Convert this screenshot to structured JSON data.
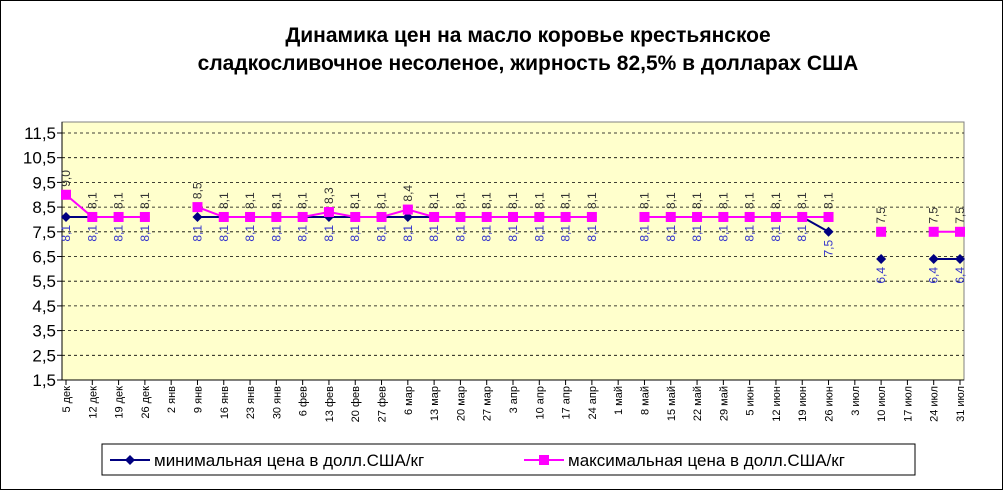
{
  "chart_data": {
    "type": "line",
    "title": [
      "Динамика цен на масло коровье крестьянское",
      "сладкосливочное несоленое, жирность 82,5%  в долларах США"
    ],
    "categories": [
      "5 дек",
      "12 дек",
      "19 дек",
      "26 дек",
      "2 янв",
      "9 янв",
      "16 янв",
      "23 янв",
      "30 янв",
      "6 фев",
      "13 фев",
      "20 фев",
      "27 фев",
      "6 мар",
      "13 мар",
      "20 мар",
      "27 мар",
      "3 апр",
      "10 апр",
      "17 апр",
      "24 апр",
      "1 май",
      "8 май",
      "15 май",
      "22 май",
      "29 май",
      "5 июн",
      "12 июн",
      "19 июн",
      "26 июн",
      "3 июл",
      "10 июл",
      "17 июл",
      "24 июл",
      "31 июл"
    ],
    "series": [
      {
        "name": "минимальная  цена  в долл.США/кг",
        "color": "#000080",
        "marker": "diamond",
        "label_color": "#3333cc",
        "label_side": "below",
        "values": [
          8.1,
          8.1,
          8.1,
          8.1,
          null,
          8.1,
          8.1,
          8.1,
          8.1,
          8.1,
          8.1,
          8.1,
          8.1,
          8.1,
          8.1,
          8.1,
          8.1,
          8.1,
          8.1,
          8.1,
          8.1,
          null,
          8.1,
          8.1,
          8.1,
          8.1,
          8.1,
          8.1,
          8.1,
          7.5,
          null,
          6.4,
          null,
          6.4,
          6.4
        ],
        "value_labels": [
          "8,1",
          "8,1",
          "8,1",
          "8,1",
          null,
          "8,1",
          "8,1",
          "8,1",
          "8,1",
          "8,1",
          "8,1",
          "8,1",
          "8,1",
          "8,1",
          "8,1",
          "8,1",
          "8,1",
          "8,1",
          "8,1",
          "8,1",
          "8,1",
          null,
          "8,1",
          "8,1",
          "8,1",
          "8,1",
          "8,1",
          "8,1",
          "8,1",
          "7,5",
          null,
          "6,4",
          null,
          "6,4",
          "6,4"
        ]
      },
      {
        "name": "максимальная  цена  в долл.США/кг",
        "color": "#ff00ff",
        "marker": "square",
        "label_color": "#333333",
        "label_side": "above",
        "values": [
          9.0,
          8.1,
          8.1,
          8.1,
          null,
          8.5,
          8.1,
          8.1,
          8.1,
          8.1,
          8.3,
          8.1,
          8.1,
          8.4,
          8.1,
          8.1,
          8.1,
          8.1,
          8.1,
          8.1,
          8.1,
          null,
          8.1,
          8.1,
          8.1,
          8.1,
          8.1,
          8.1,
          8.1,
          8.1,
          null,
          7.5,
          null,
          7.5,
          7.5
        ],
        "value_labels": [
          "9,0",
          "8,1",
          "8,1",
          "8,1",
          null,
          "8,5",
          "8,1",
          "8,1",
          "8,1",
          "8,1",
          "8,3",
          "8,1",
          "8,1",
          "8,4",
          "8,1",
          "8,1",
          "8,1",
          "8,1",
          "8,1",
          "8,1",
          "8,1",
          null,
          "8,1",
          "8,1",
          "8,1",
          "8,1",
          "8,1",
          "8,1",
          "8,1",
          "8,1",
          null,
          "7,5",
          null,
          "7,5",
          "7,5"
        ]
      }
    ],
    "ylim": [
      1.5,
      11.5
    ],
    "yticks": [
      {
        "value": 1.5,
        "label": "1,5"
      },
      {
        "value": 2.5,
        "label": "2,5"
      },
      {
        "value": 3.5,
        "label": "3,5"
      },
      {
        "value": 4.5,
        "label": "4,5"
      },
      {
        "value": 5.5,
        "label": "5,5"
      },
      {
        "value": 6.5,
        "label": "6,5"
      },
      {
        "value": 7.5,
        "label": "7,5"
      },
      {
        "value": 8.5,
        "label": "8,5"
      },
      {
        "value": 9.5,
        "label": "9,5"
      },
      {
        "value": 10.5,
        "label": "10,5"
      },
      {
        "value": 11.5,
        "label": "11,5"
      }
    ],
    "grid": true,
    "grid_style": "dashed",
    "plot_background": "#ffffcc",
    "legend": "bottom"
  }
}
